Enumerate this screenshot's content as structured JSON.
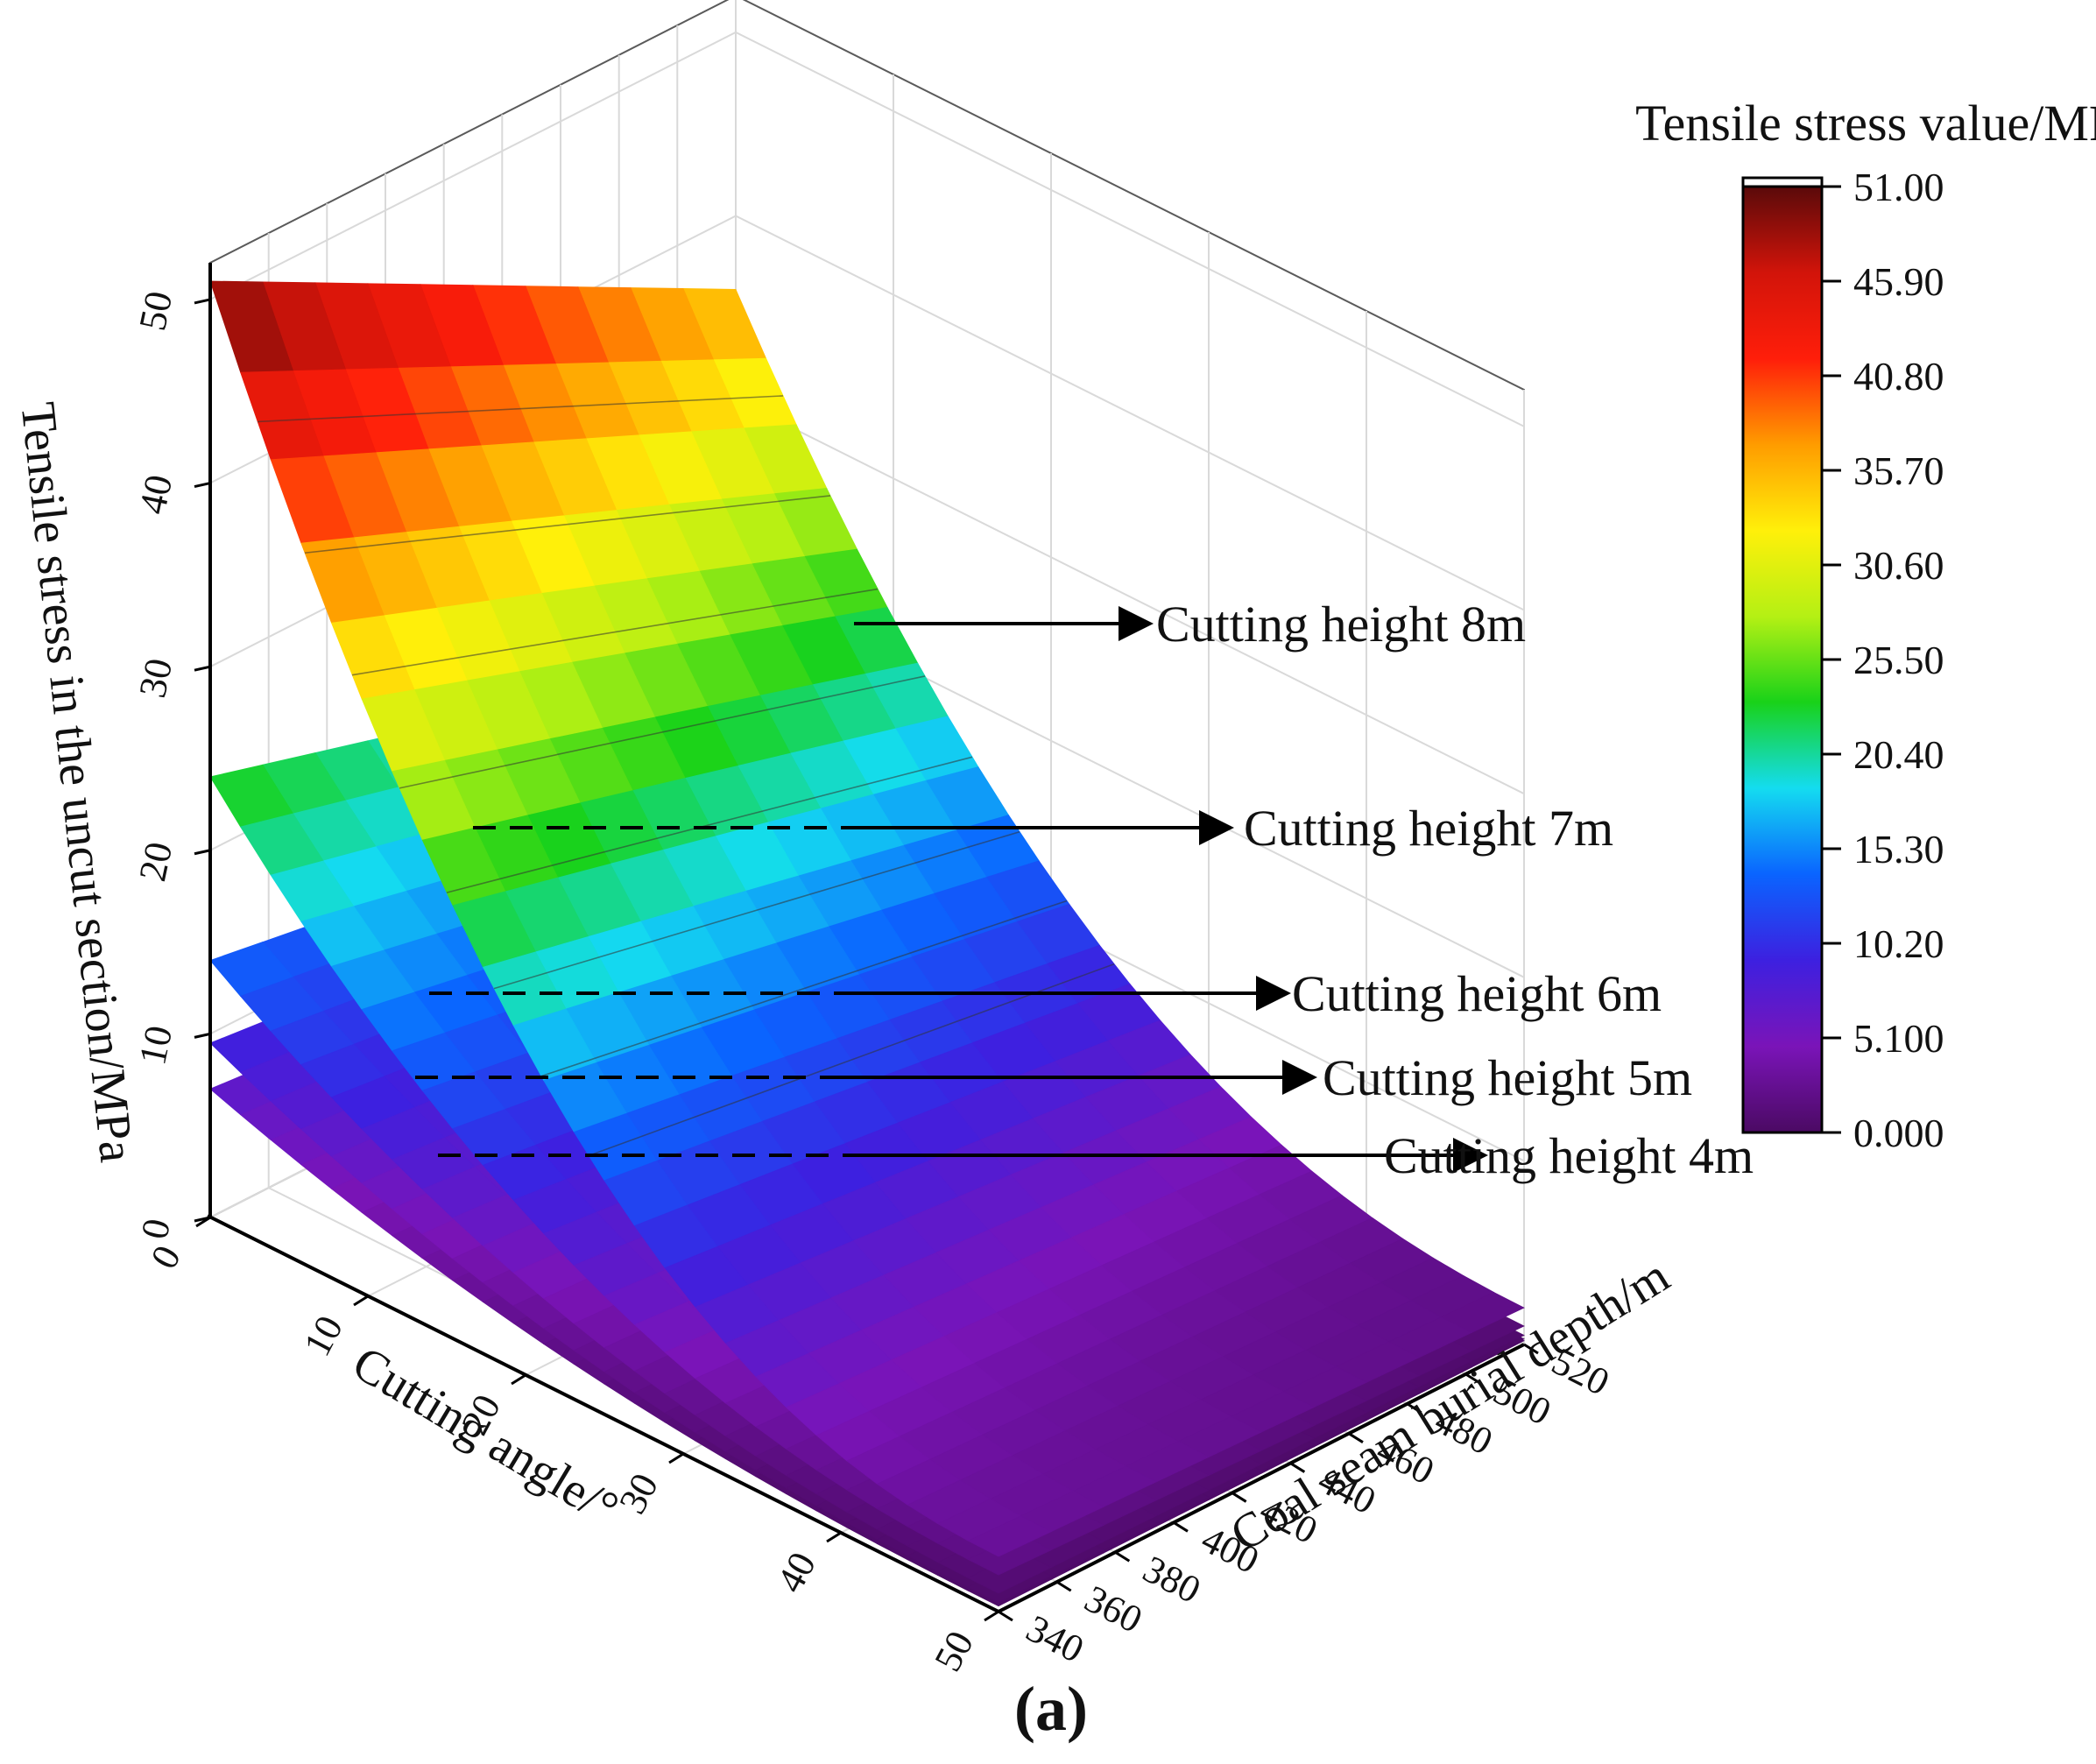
{
  "chart_data": {
    "type": "surface3d",
    "panel_label": "(a)",
    "panel_letter": "a",
    "zlabel": "Tensile stress in the uncut section/MPa",
    "xlabel": "Cutting angle/°",
    "ylabel": "Coal seam burial depth/m",
    "x_ticks": [
      "0",
      "10",
      "20",
      "30",
      "40",
      "50"
    ],
    "x_range": [
      0,
      50
    ],
    "y_ticks": [
      "340",
      "360",
      "380",
      "400",
      "420",
      "440",
      "460",
      "480",
      "500",
      "520"
    ],
    "y_range": [
      340,
      520
    ],
    "z_ticks": [
      "0",
      "10",
      "20",
      "30",
      "40",
      "50"
    ],
    "z_range": [
      0,
      52
    ],
    "grid": true,
    "colorbar": {
      "title": "Tensile stress value/MPa",
      "labels": [
        "51.00",
        "45.90",
        "40.80",
        "35.70",
        "30.60",
        "25.50",
        "20.40",
        "15.30",
        "10.20",
        "5.100",
        "0.000"
      ],
      "range": [
        0,
        51
      ],
      "colormap": [
        "#4b0a63",
        "#7a14b8",
        "#3d20e0",
        "#0a64ff",
        "#14dcf0",
        "#19d219",
        "#b4f014",
        "#fff00a",
        "#ff9c00",
        "#ff1e0a",
        "#d2140a",
        "#5a0a0a"
      ]
    },
    "series": [
      {
        "name": "Cutting height 4m",
        "label": "Cutting height 4m",
        "z_at_x0_y340": 7,
        "z_at_x50_y340": 0.3,
        "z_at_x0_y520": 4.5,
        "z_at_x50_y520": 0.2
      },
      {
        "name": "Cutting height 5m",
        "label": "Cutting height 5m",
        "z_at_x0_y340": 9.5,
        "z_at_x50_y340": 0.5,
        "z_at_x0_y520": 6.5,
        "z_at_x50_y520": 0.3
      },
      {
        "name": "Cutting height 6m",
        "label": "Cutting height 6m",
        "z_at_x0_y340": 14,
        "z_at_x50_y340": 1,
        "z_at_x0_y520": 9.5,
        "z_at_x50_y520": 0.5
      },
      {
        "name": "Cutting height 7m",
        "label": "Cutting height 7m",
        "z_at_x0_y340": 24,
        "z_at_x50_y340": 2,
        "z_at_x0_y520": 16,
        "z_at_x50_y520": 1
      },
      {
        "name": "Cutting height 8m",
        "label": "Cutting height 8m",
        "z_at_x0_y340": 51,
        "z_at_x50_y340": 3,
        "z_at_x0_y520": 36,
        "z_at_x50_y520": 2
      }
    ]
  }
}
